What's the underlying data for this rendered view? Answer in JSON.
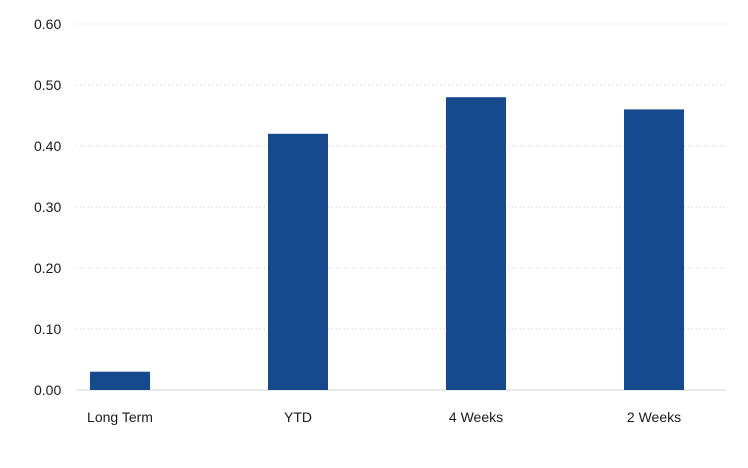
{
  "chart_data": {
    "type": "bar",
    "categories": [
      "Long Term",
      "YTD",
      "4 Weeks",
      "2 Weeks"
    ],
    "values": [
      0.03,
      0.42,
      0.48,
      0.46
    ],
    "title": "",
    "xlabel": "",
    "ylabel": "",
    "ylim": [
      0,
      0.6
    ],
    "yticks": [
      "0.00",
      "0.10",
      "0.20",
      "0.30",
      "0.40",
      "0.50",
      "0.60"
    ],
    "grid": true,
    "legend": "none",
    "bar_color": "#174a8c"
  }
}
